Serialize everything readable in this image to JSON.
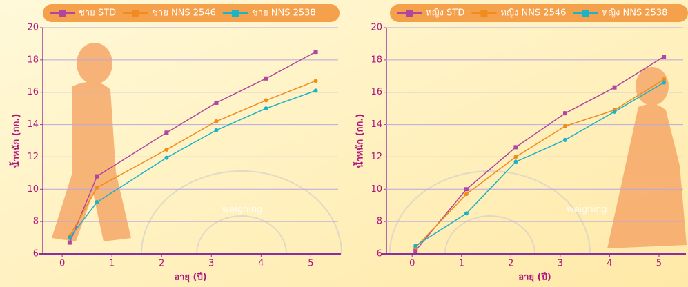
{
  "chart_data": [
    {
      "type": "line",
      "legend_labels": true,
      "x": [
        0.15,
        0.7,
        2.1,
        3.1,
        4.1,
        5.1
      ],
      "series": [
        {
          "name": "ชาย STD",
          "color": "#b0479e",
          "values": [
            6.7,
            10.8,
            13.5,
            15.35,
            16.85,
            18.5
          ]
        },
        {
          "name": "ชาย NNS 2546",
          "color": "#f08c1e",
          "values": [
            7.1,
            10.1,
            12.45,
            14.2,
            15.5,
            16.7
          ]
        },
        {
          "name": "ชาย NNS 2538",
          "color": "#1ab3c8",
          "values": [
            7.0,
            9.2,
            11.95,
            13.65,
            15.0,
            16.1
          ]
        }
      ],
      "xlim": [
        -0.39,
        5.55
      ],
      "ylim": [
        6,
        20
      ],
      "xticks": [
        0,
        1,
        2,
        3,
        4,
        5
      ],
      "yticks": [
        6,
        8,
        10,
        12,
        14,
        16,
        18,
        20
      ],
      "xlabel": "อายุ (ปี)",
      "ylabel": "น้ำหนัก (กก.)",
      "annotation": "weighing",
      "grid": true
    },
    {
      "type": "line",
      "x": [
        0.07,
        1.1,
        2.1,
        3.1,
        4.1,
        5.1
      ],
      "series": [
        {
          "name": "หญิง STD",
          "color": "#b0479e",
          "values": [
            6.2,
            10.0,
            12.6,
            14.7,
            16.3,
            18.2
          ]
        },
        {
          "name": "หญิง NNS 2546",
          "color": "#f08c1e",
          "values": [
            6.4,
            9.7,
            12.0,
            13.9,
            14.9,
            16.8
          ]
        },
        {
          "name": "หญิง NNS 2538",
          "color": "#1ab3c8",
          "values": [
            6.5,
            8.5,
            11.7,
            13.05,
            14.8,
            16.6
          ]
        }
      ],
      "xlim": [
        -0.52,
        5.49
      ],
      "ylim": [
        6,
        20
      ],
      "xticks": [
        0,
        1,
        2,
        3,
        4,
        5
      ],
      "yticks": [
        6,
        8,
        10,
        12,
        14,
        16,
        18,
        20
      ],
      "xlabel": "อายุ (ปี)",
      "ylabel": "น้ำหนัก (กก.)",
      "annotation": "weighing",
      "grid": true
    }
  ]
}
